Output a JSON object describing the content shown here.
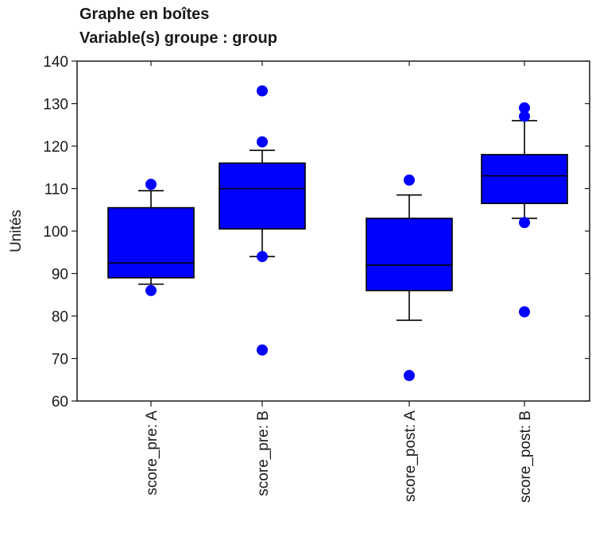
{
  "chart_data": {
    "type": "box",
    "title": "Graphe en boîtes",
    "subtitle": "Variable(s) groupe : group",
    "ylabel": "Unités",
    "xlabel": "",
    "ylim": [
      60,
      140
    ],
    "yticks": [
      60,
      70,
      80,
      90,
      100,
      110,
      120,
      130,
      140
    ],
    "grid": false,
    "legend": "none",
    "box_color": "#0000ff",
    "outlier_color": "#0000ff",
    "categories": [
      "score_pre: A",
      "score_pre: B",
      "score_post: A",
      "score_post: B"
    ],
    "boxes": [
      {
        "category": "score_pre: A",
        "whisker_low": 87.5,
        "q1": 89,
        "median": 92.5,
        "q3": 105.5,
        "whisker_high": 109.5,
        "outliers": [
          86,
          111
        ]
      },
      {
        "category": "score_pre: B",
        "whisker_low": 94,
        "q1": 100.5,
        "median": 110,
        "q3": 116,
        "whisker_high": 119,
        "outliers": [
          72,
          94,
          121,
          133
        ]
      },
      {
        "category": "score_post: A",
        "whisker_low": 79,
        "q1": 86,
        "median": 92,
        "q3": 103,
        "whisker_high": 108.5,
        "outliers": [
          66,
          112
        ]
      },
      {
        "category": "score_post: B",
        "whisker_low": 103,
        "q1": 106.5,
        "median": 113,
        "q3": 118,
        "whisker_high": 126,
        "outliers": [
          81,
          102,
          127,
          129
        ]
      }
    ]
  }
}
